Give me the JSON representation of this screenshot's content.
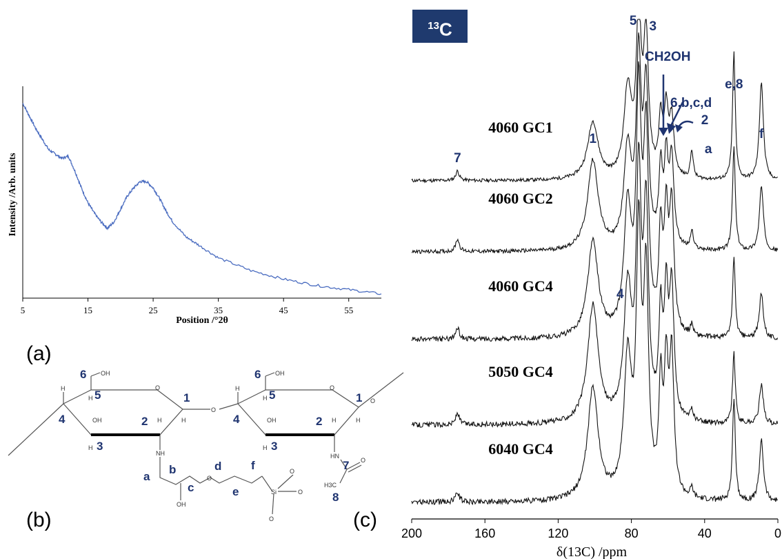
{
  "panel_labels": {
    "a": "(a)",
    "b": "(b)",
    "c": "(c)"
  },
  "colors": {
    "xrd_line": "#4a6cc0",
    "spectrum_line": "#111111",
    "label_navy": "#1f3470",
    "badge_bg": "#1f3a6e"
  },
  "structure": {
    "site_numbers": [
      "6",
      "5",
      "4",
      "3",
      "2",
      "1",
      "6",
      "5",
      "4",
      "3",
      "2",
      "1",
      "7",
      "8"
    ],
    "side_letters": [
      "a",
      "b",
      "c",
      "d",
      "e",
      "f"
    ],
    "atoms": {
      "oh": "OH",
      "o": "O",
      "h": "H",
      "nh": "NH",
      "hn": "HN",
      "si": "Si",
      "ch3": "H3C"
    }
  },
  "chart_data": [
    {
      "type": "line",
      "panel": "(a)",
      "xlabel": "Position /°2θ",
      "ylabel": "Intensity /Arb. units",
      "xlim": [
        5,
        60
      ],
      "x_ticks": [
        5,
        15,
        25,
        35,
        45,
        55
      ],
      "yticks_shown": false,
      "series": [
        {
          "x": [
            5,
            6,
            7,
            8,
            9,
            10,
            11,
            12,
            13,
            14,
            15,
            16,
            17,
            18,
            19,
            20,
            21,
            22,
            23,
            24,
            25,
            26,
            27,
            28,
            30,
            32,
            35,
            40,
            45,
            50,
            55,
            60
          ],
          "y": [
            0.92,
            0.86,
            0.8,
            0.75,
            0.7,
            0.68,
            0.66,
            0.67,
            0.6,
            0.52,
            0.45,
            0.4,
            0.36,
            0.33,
            0.36,
            0.42,
            0.48,
            0.52,
            0.55,
            0.55,
            0.52,
            0.47,
            0.41,
            0.36,
            0.29,
            0.25,
            0.19,
            0.13,
            0.09,
            0.06,
            0.04,
            0.02
          ]
        }
      ]
    },
    {
      "type": "line",
      "panel": "(c)",
      "title": "13C",
      "xlabel": "δ(13C) /ppm",
      "xlim": [
        200,
        0
      ],
      "x_ticks": [
        200,
        160,
        120,
        80,
        40,
        0
      ],
      "series": [
        {
          "name": "4060 GC1",
          "peak_heights": [
            0.06,
            0.36,
            0.55,
            1.0,
            0.85,
            0.35,
            0.4,
            0.36,
            0.18,
            0.8,
            0.62
          ]
        },
        {
          "name": "4060 GC2",
          "peak_heights": [
            0.07,
            0.5,
            0.55,
            1.0,
            0.85,
            0.4,
            0.45,
            0.48,
            0.1,
            0.58,
            0.36
          ]
        },
        {
          "name": "4060 GC4",
          "peak_heights": [
            0.05,
            0.42,
            0.55,
            1.0,
            0.85,
            0.42,
            0.48,
            0.55,
            0.05,
            0.35,
            0.2
          ]
        },
        {
          "name": "5050 GC4",
          "peak_heights": [
            0.05,
            0.5,
            0.55,
            1.0,
            0.85,
            0.42,
            0.48,
            0.55,
            0.05,
            0.3,
            0.17
          ]
        },
        {
          "name": "6040 GC4",
          "peak_heights": [
            0.04,
            0.45,
            0.55,
            1.0,
            0.85,
            0.42,
            0.48,
            0.55,
            0.04,
            0.42,
            0.25
          ]
        }
      ],
      "peaks_ppm": [
        175,
        101,
        82,
        76,
        72,
        64,
        61,
        58,
        47,
        24,
        9
      ],
      "peak_labels": [
        {
          "text": "7",
          "ppm": 175
        },
        {
          "text": "1",
          "ppm": 101
        },
        {
          "text": "4",
          "ppm": 82
        },
        {
          "text": "5",
          "ppm": 76
        },
        {
          "text": "3",
          "ppm": 72
        },
        {
          "text": "2",
          "ppm": 58
        },
        {
          "text": "a",
          "ppm": 47
        },
        {
          "text": "e,8",
          "ppm": 24
        },
        {
          "text": "f",
          "ppm": 9
        }
      ],
      "arrow_labels": {
        "ch2oh": "CH2OH",
        "group": "6,b,c,d"
      }
    }
  ]
}
